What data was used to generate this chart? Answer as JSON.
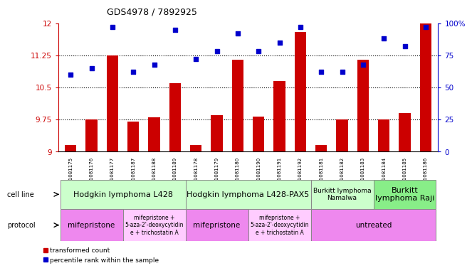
{
  "title": "GDS4978 / 7892925",
  "samples": [
    "GSM1081175",
    "GSM1081176",
    "GSM1081177",
    "GSM1081187",
    "GSM1081188",
    "GSM1081189",
    "GSM1081178",
    "GSM1081179",
    "GSM1081180",
    "GSM1081190",
    "GSM1081191",
    "GSM1081192",
    "GSM1081181",
    "GSM1081182",
    "GSM1081183",
    "GSM1081184",
    "GSM1081185",
    "GSM1081186"
  ],
  "bar_values": [
    9.15,
    9.75,
    11.25,
    9.7,
    9.8,
    10.6,
    9.15,
    9.85,
    11.15,
    9.82,
    10.65,
    11.8,
    9.15,
    9.75,
    11.15,
    9.75,
    9.9,
    12.0
  ],
  "scatter_values": [
    60,
    65,
    97,
    62,
    68,
    95,
    72,
    78,
    92,
    78,
    85,
    97,
    62,
    62,
    68,
    88,
    82,
    97
  ],
  "ymin": 9,
  "ymax": 12,
  "yticks": [
    9,
    9.75,
    10.5,
    11.25,
    12
  ],
  "right_yticks": [
    0,
    25,
    50,
    75,
    100
  ],
  "bar_color": "#cc0000",
  "scatter_color": "#0000cc",
  "cell_line_groups": [
    {
      "label": "Hodgkin lymphoma L428",
      "start": 0,
      "end": 6,
      "color": "#ccffcc",
      "fontsize": 8
    },
    {
      "label": "Hodgkin lymphoma L428-PAX5",
      "start": 6,
      "end": 12,
      "color": "#ccffcc",
      "fontsize": 8
    },
    {
      "label": "Burkitt lymphoma\nNamalwa",
      "start": 12,
      "end": 15,
      "color": "#ccffcc",
      "fontsize": 6.5
    },
    {
      "label": "Burkitt\nlymphoma Raji",
      "start": 15,
      "end": 18,
      "color": "#88ee88",
      "fontsize": 8
    }
  ],
  "protocol_groups": [
    {
      "label": "mifepristone",
      "start": 0,
      "end": 3,
      "color": "#ee88ee",
      "fontsize": 7.5
    },
    {
      "label": "mifepristone +\n5-aza-2'-deoxycytidin\ne + trichostatin A",
      "start": 3,
      "end": 6,
      "color": "#ffccff",
      "fontsize": 5.5
    },
    {
      "label": "mifepristone",
      "start": 6,
      "end": 9,
      "color": "#ee88ee",
      "fontsize": 7.5
    },
    {
      "label": "mifepristone +\n5-aza-2'-deoxycytidin\ne + trichostatin A",
      "start": 9,
      "end": 12,
      "color": "#ffccff",
      "fontsize": 5.5
    },
    {
      "label": "untreated",
      "start": 12,
      "end": 18,
      "color": "#ee88ee",
      "fontsize": 7.5
    }
  ],
  "legend_bar_label": "transformed count",
  "legend_scatter_label": "percentile rank within the sample",
  "cell_line_label": "cell line",
  "protocol_label": "protocol"
}
